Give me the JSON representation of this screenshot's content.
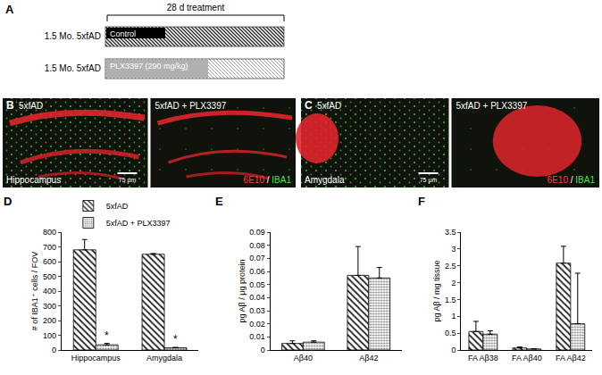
{
  "panel_a": {
    "label": "A",
    "duration": "28 d treatment",
    "rows": [
      {
        "label": "1.5 Mo. 5xfAD",
        "treatment": "Control"
      },
      {
        "label": "1.5 Mo. 5xfAD",
        "treatment": "PLX3397 (290 mg/kg)"
      }
    ]
  },
  "panel_b": {
    "label": "B",
    "region": "Hippocampus",
    "conditions": [
      "5xfAD",
      "5xfAD + PLX3397"
    ],
    "stains": [
      "6E10",
      "IBA1"
    ],
    "stain_separator": " / ",
    "scale_bar": "75 μm"
  },
  "panel_c": {
    "label": "C",
    "region": "Amygdala",
    "conditions": [
      "5xfAD",
      "5xfAD + PLX3397"
    ],
    "stains": [
      "6E10",
      "IBA1"
    ],
    "stain_separator": " / ",
    "scale_bar": "75 μm"
  },
  "chart_data": [
    {
      "type": "bar",
      "title": "D",
      "ylabel": "# of IBA1⁺ cells / FOV",
      "categories": [
        "Hippocampus",
        "Amygdala"
      ],
      "series": [
        {
          "name": "5xfAD",
          "color": "#222222",
          "marker": "hatch",
          "values": [
            680,
            650
          ],
          "errors": [
            70,
            5
          ]
        },
        {
          "name": "5xfAD + PLX3397",
          "color": "#777777",
          "marker": "dots",
          "values": [
            35,
            15
          ],
          "errors": [
            10,
            3
          ]
        }
      ],
      "ylim": [
        0,
        800
      ],
      "yticks": [
        0,
        100,
        200,
        300,
        400,
        500,
        600,
        700,
        800
      ],
      "grid": false,
      "legend": "top",
      "annotations": [
        {
          "text": "*",
          "category": "Hippocampus",
          "series": "5xfAD + PLX3397"
        },
        {
          "text": "*",
          "category": "Amygdala",
          "series": "5xfAD + PLX3397"
        }
      ]
    },
    {
      "type": "bar",
      "title": "E",
      "ylabel": "pg Aβ / μg protein",
      "categories": [
        "Aβ40",
        "Aβ42"
      ],
      "series": [
        {
          "name": "5xfAD",
          "color": "#222222",
          "marker": "hatch",
          "values": [
            0.005,
            0.057
          ],
          "errors": [
            0.002,
            0.022
          ]
        },
        {
          "name": "5xfAD + PLX3397",
          "color": "#777777",
          "marker": "dots",
          "values": [
            0.006,
            0.055
          ],
          "errors": [
            0.001,
            0.008
          ]
        }
      ],
      "ylim": [
        0,
        0.09
      ],
      "yticks": [
        0,
        0.01,
        0.02,
        0.03,
        0.04,
        0.05,
        0.06,
        0.07,
        0.08,
        0.09
      ],
      "grid": false
    },
    {
      "type": "bar",
      "title": "F",
      "ylabel": "pg Aβ / mg tissue",
      "categories": [
        "FA Aβ38",
        "FA Aβ40",
        "FA Aβ42"
      ],
      "series": [
        {
          "name": "5xfAD",
          "color": "#222222",
          "marker": "hatch",
          "values": [
            0.55,
            0.06,
            2.58
          ],
          "errors": [
            0.3,
            0.03,
            0.5
          ]
        },
        {
          "name": "5xfAD + PLX3397",
          "color": "#777777",
          "marker": "dots",
          "values": [
            0.47,
            0.03,
            0.78
          ],
          "errors": [
            0.1,
            0.01,
            1.5
          ]
        }
      ],
      "ylim": [
        0,
        3.5
      ],
      "yticks": [
        0,
        0.5,
        1,
        1.5,
        2,
        2.5,
        3,
        3.5
      ],
      "grid": false
    }
  ]
}
